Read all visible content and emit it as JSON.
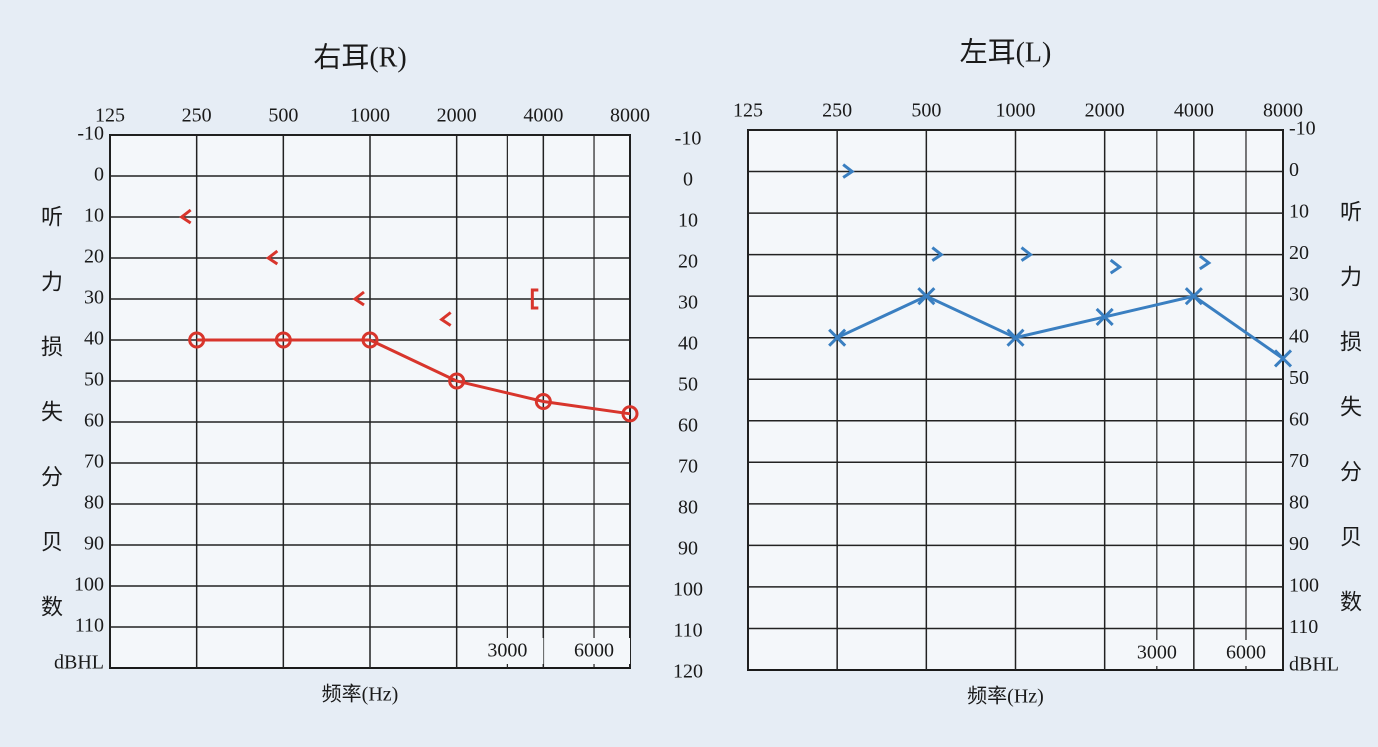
{
  "chart_data": [
    {
      "type": "line",
      "title": "右耳(R)",
      "x_label": "频率(Hz)",
      "y_label": "听力损失分贝数",
      "y_unit": "dBHL",
      "xscale": "log",
      "xlim": [
        125,
        8000
      ],
      "x": [
        125,
        250,
        500,
        1000,
        2000,
        4000,
        8000
      ],
      "xticks": [
        125,
        250,
        500,
        1000,
        2000,
        4000,
        8000
      ],
      "xticks_minor": [
        3000,
        6000
      ],
      "ylim": [
        -10,
        120
      ],
      "yreverse": true,
      "yticks": [
        -10,
        0,
        10,
        20,
        30,
        40,
        50,
        60,
        70,
        80,
        90,
        100,
        110
      ],
      "y2lim": [
        -10,
        120
      ],
      "y2ticks": [
        -10,
        0,
        10,
        20,
        30,
        40,
        50,
        60,
        70,
        80,
        90,
        100,
        110,
        120
      ],
      "grid": true,
      "y_side": "left",
      "series": [
        {
          "color": "#d8352c",
          "marker": "circle",
          "line": true,
          "values": [
            null,
            40,
            40,
            40,
            50,
            55,
            58
          ]
        },
        {
          "color": "#d8352c",
          "marker": "lt",
          "line": false,
          "values": [
            null,
            10,
            20,
            30,
            35,
            null,
            null
          ]
        },
        {
          "color": "#d8352c",
          "marker": "bracket",
          "line": false,
          "values": [
            null,
            null,
            null,
            null,
            null,
            30,
            null
          ]
        }
      ]
    },
    {
      "type": "line",
      "title": "左耳(L)",
      "x_label": "频率(Hz)",
      "y_label": "听力损失分贝数",
      "y_unit": "dBHL",
      "xscale": "log",
      "xlim": [
        125,
        8000
      ],
      "x": [
        125,
        250,
        500,
        1000,
        2000,
        4000,
        8000
      ],
      "xticks": [
        125,
        250,
        500,
        1000,
        2000,
        4000,
        8000
      ],
      "xticks_minor": [
        3000,
        6000
      ],
      "ylim": [
        -10,
        120
      ],
      "yreverse": true,
      "yticks": [
        -10,
        0,
        10,
        20,
        30,
        40,
        50,
        60,
        70,
        80,
        90,
        100,
        110
      ],
      "grid": true,
      "y_side": "right",
      "series": [
        {
          "color": "#3a7fc1",
          "marker": "cross",
          "line": true,
          "values": [
            null,
            40,
            30,
            40,
            35,
            30,
            45
          ]
        },
        {
          "color": "#3a7fc1",
          "marker": "gt",
          "line": false,
          "values": [
            null,
            0,
            20,
            20,
            23,
            22,
            null
          ]
        }
      ]
    }
  ]
}
